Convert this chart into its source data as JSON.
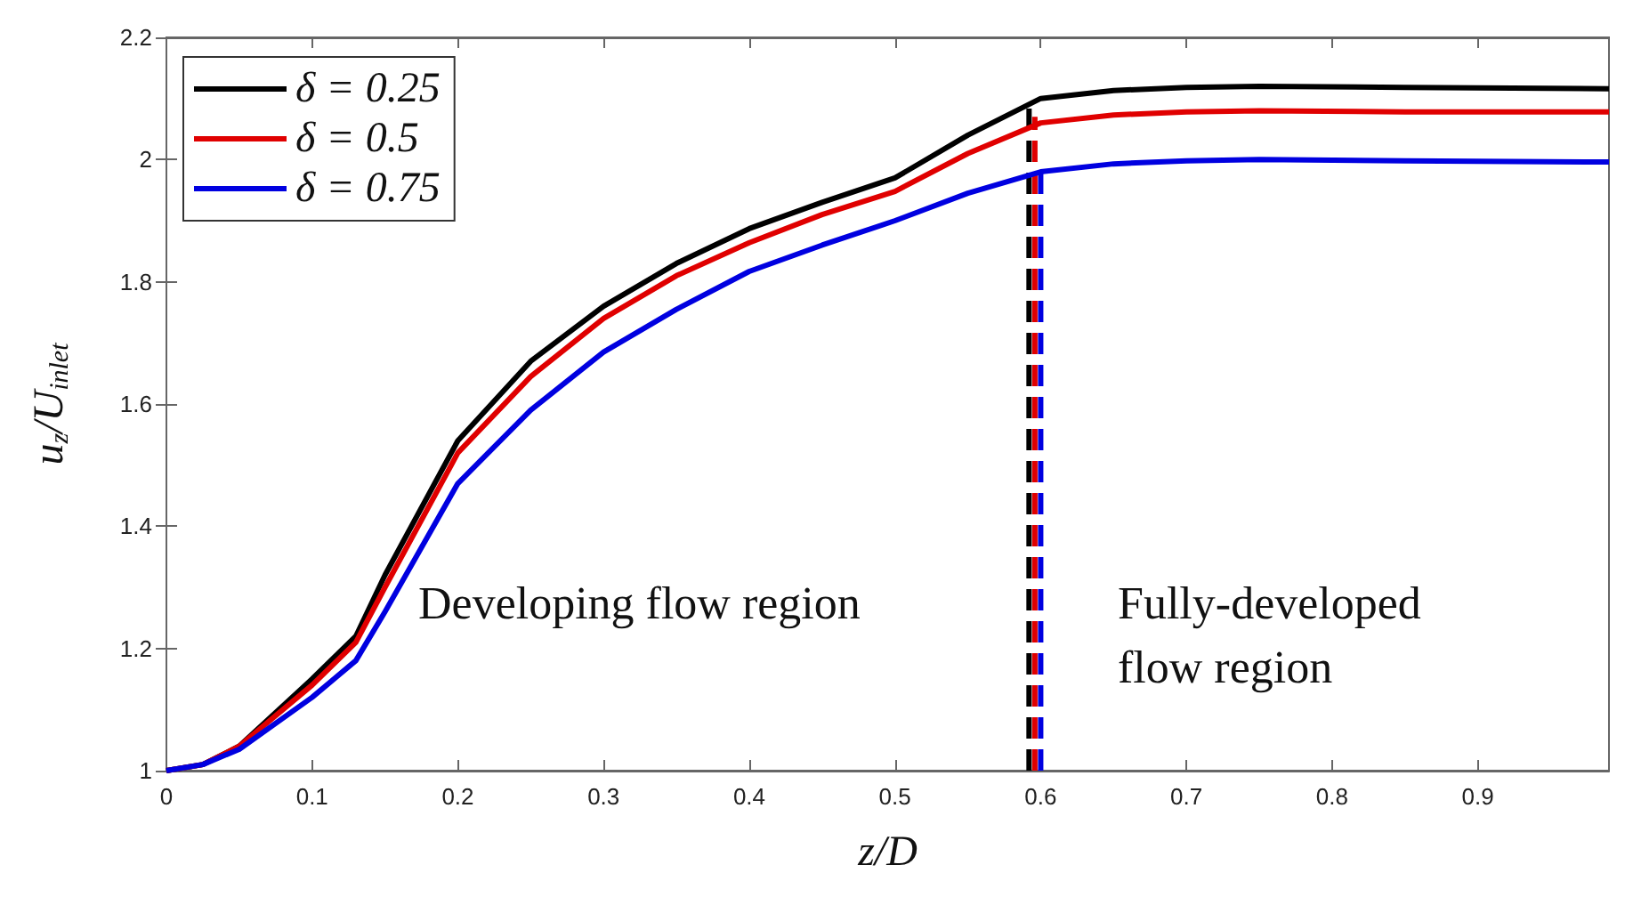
{
  "chart_data": {
    "type": "line",
    "xlabel": "z/D",
    "ylabel": "u$_{z}$/U$_{inlet}$",
    "x": [
      0,
      0.025,
      0.05,
      0.1,
      0.13,
      0.15,
      0.2,
      0.25,
      0.3,
      0.35,
      0.4,
      0.45,
      0.5,
      0.55,
      0.6,
      0.65,
      0.7,
      0.75,
      0.85,
      0.99
    ],
    "series": [
      {
        "name": "δ = 0.25",
        "color": "#000000",
        "values": [
          1,
          1.01,
          1.04,
          1.15,
          1.22,
          1.32,
          1.54,
          1.67,
          1.76,
          1.83,
          1.887,
          1.93,
          1.97,
          2.04,
          2.1,
          2.113,
          2.118,
          2.12,
          2.118,
          2.116
        ]
      },
      {
        "name": "δ = 0.5",
        "color": "#e00000",
        "values": [
          1,
          1.01,
          1.04,
          1.14,
          1.21,
          1.3,
          1.52,
          1.645,
          1.74,
          1.81,
          1.864,
          1.91,
          1.948,
          2.01,
          2.06,
          2.073,
          2.078,
          2.08,
          2.078,
          2.078
        ]
      },
      {
        "name": "δ = 0.75",
        "color": "#0000e0",
        "values": [
          1,
          1.01,
          1.035,
          1.12,
          1.18,
          1.26,
          1.47,
          1.59,
          1.685,
          1.755,
          1.817,
          1.86,
          1.9,
          1.945,
          1.98,
          1.993,
          1.998,
          2,
          1.998,
          1.996
        ]
      },
      {
        "color": "#000000",
        "line_style": "dashed",
        "x": [
          0.592,
          0.592
        ],
        "values": [
          1,
          2.1
        ]
      },
      {
        "color": "#e00000",
        "line_style": "dashed",
        "x": [
          0.596,
          0.596
        ],
        "values": [
          1,
          2.07
        ]
      },
      {
        "color": "#0000e0",
        "line_style": "dashed",
        "x": [
          0.6,
          0.6
        ],
        "values": [
          1,
          1.99
        ]
      }
    ],
    "annotations": [
      "Developing flow region",
      "Fully-developed\nflow region"
    ],
    "xlim": [
      0,
      0.99
    ],
    "xticks": [
      0,
      0.1,
      0.2,
      0.3,
      0.4,
      0.5,
      0.6,
      0.7,
      0.8,
      0.9
    ],
    "ylim": [
      1,
      2.2
    ],
    "yticks": [
      1,
      1.2,
      1.4,
      1.6,
      1.8,
      2,
      2.2
    ],
    "grid": false,
    "legend": "top left",
    "marker": "none",
    "line_style": "solid"
  }
}
